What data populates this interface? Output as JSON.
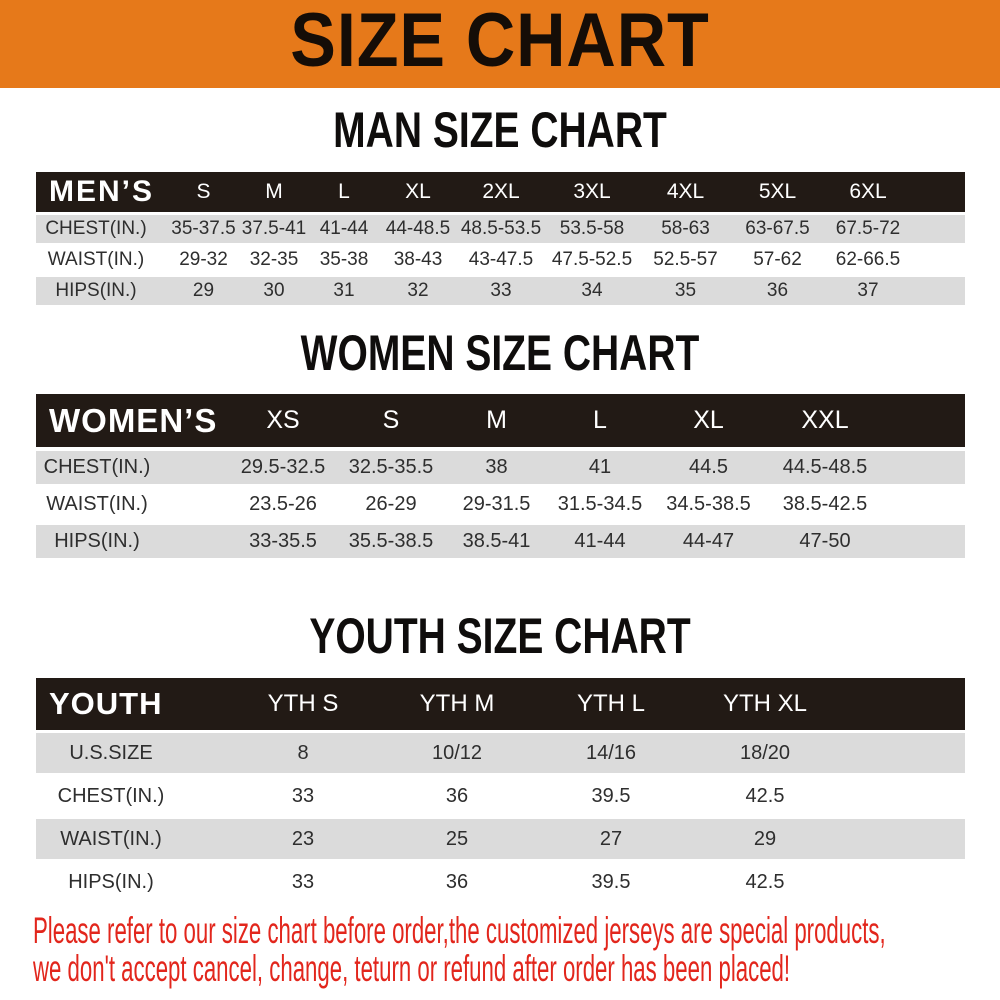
{
  "banner": {
    "title": "SIZE CHART"
  },
  "colors": {
    "banner_orange": "#e6791a",
    "header_black": "#221a15",
    "row_gray": "#dbdbdb",
    "note_red": "#e2261c"
  },
  "chart_data": [
    {
      "type": "table",
      "title": "MAN SIZE CHART",
      "columns": [
        "MEN’S",
        "S",
        "M",
        "L",
        "XL",
        "2XL",
        "3XL",
        "4XL",
        "5XL",
        "6XL"
      ],
      "rows": [
        {
          "label": "CHEST(IN.)",
          "values": [
            "35-37.5",
            "37.5-41",
            "41-44",
            "44-48.5",
            "48.5-53.5",
            "53.5-58",
            "58-63",
            "63-67.5",
            "67.5-72"
          ]
        },
        {
          "label": "WAIST(IN.)",
          "values": [
            "29-32",
            "32-35",
            "35-38",
            "38-43",
            "43-47.5",
            "47.5-52.5",
            "52.5-57",
            "57-62",
            "62-66.5"
          ]
        },
        {
          "label": "HIPS(IN.)",
          "values": [
            "29",
            "30",
            "31",
            "32",
            "33",
            "34",
            "35",
            "36",
            "37"
          ]
        }
      ]
    },
    {
      "type": "table",
      "title": "WOMEN SIZE CHART",
      "columns": [
        "WOMEN’S",
        "XS",
        "S",
        "M",
        "L",
        "XL",
        "XXL"
      ],
      "rows": [
        {
          "label": "CHEST(IN.)",
          "values": [
            "29.5-32.5",
            "32.5-35.5",
            "38",
            "41",
            "44.5",
            "44.5-48.5"
          ]
        },
        {
          "label": "WAIST(IN.)",
          "values": [
            "23.5-26",
            "26-29",
            "29-31.5",
            "31.5-34.5",
            "34.5-38.5",
            "38.5-42.5"
          ]
        },
        {
          "label": "HIPS(IN.)",
          "values": [
            "33-35.5",
            "35.5-38.5",
            "38.5-41",
            "41-44",
            "44-47",
            "47-50"
          ]
        }
      ]
    },
    {
      "type": "table",
      "title": "YOUTH SIZE CHART",
      "columns": [
        "YOUTH",
        "YTH S",
        "YTH M",
        "YTH L",
        "YTH XL"
      ],
      "rows": [
        {
          "label": "U.S.SIZE",
          "values": [
            "8",
            "10/12",
            "14/16",
            "18/20"
          ]
        },
        {
          "label": "CHEST(IN.)",
          "values": [
            "33",
            "36",
            "39.5",
            "42.5"
          ]
        },
        {
          "label": "WAIST(IN.)",
          "values": [
            "23",
            "25",
            "27",
            "29"
          ]
        },
        {
          "label": "HIPS(IN.)",
          "values": [
            "33",
            "36",
            "39.5",
            "42.5"
          ]
        }
      ]
    }
  ],
  "note": {
    "line1": "Please refer to our size chart before order,the customized jerseys are special products,",
    "line2": "we don't accept cancel, change, teturn or refund after order has been placed!"
  }
}
